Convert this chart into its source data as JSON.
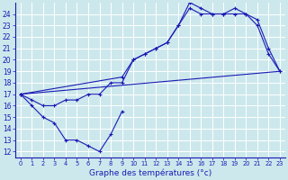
{
  "title": "Graphe des températures (°c)",
  "bg_color": "#cce8ec",
  "grid_color": "#ffffff",
  "line_color": "#1a1ab4",
  "xlim": [
    -0.5,
    23.5
  ],
  "ylim": [
    11.5,
    25.0
  ],
  "xticks": [
    0,
    1,
    2,
    3,
    4,
    5,
    6,
    7,
    8,
    9,
    10,
    11,
    12,
    13,
    14,
    15,
    16,
    17,
    18,
    19,
    20,
    21,
    22,
    23
  ],
  "yticks": [
    12,
    13,
    14,
    15,
    16,
    17,
    18,
    19,
    20,
    21,
    22,
    23,
    24
  ],
  "line1_x": [
    0,
    1,
    2,
    3,
    4,
    5,
    6,
    7,
    8,
    9
  ],
  "line1_y": [
    17,
    16,
    15,
    14.5,
    13,
    13,
    12.5,
    12,
    13.5,
    15.5
  ],
  "line2_x": [
    0,
    1,
    2,
    3,
    4,
    5,
    6,
    7,
    8,
    9,
    10,
    11,
    12,
    13,
    14,
    15,
    16,
    17,
    18,
    19,
    20,
    21,
    22,
    23
  ],
  "line2_y": [
    17,
    16.5,
    16,
    16,
    16.5,
    16.5,
    17,
    17,
    18,
    18,
    20,
    20.5,
    21,
    21.5,
    23,
    24.5,
    24,
    24,
    24,
    24,
    24,
    23,
    20.5,
    19
  ],
  "line3_x": [
    0,
    9,
    10,
    11,
    12,
    13,
    14,
    15,
    16,
    17,
    18,
    19,
    20,
    21,
    22,
    23
  ],
  "line3_y": [
    17,
    18.5,
    20,
    20.5,
    21,
    21.5,
    23,
    25,
    24.5,
    24,
    24,
    24.5,
    24,
    23.5,
    21,
    19
  ],
  "line4_x": [
    0,
    23
  ],
  "line4_y": [
    17,
    19
  ]
}
